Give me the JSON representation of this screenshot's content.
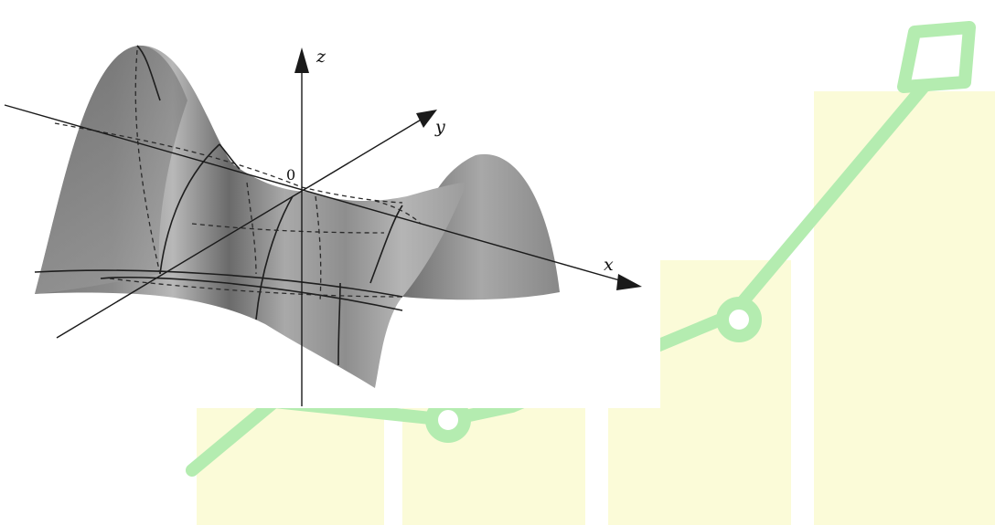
{
  "colors": {
    "watermark_bars": "#fbfbd8",
    "watermark_arrow": "#a8e6a8",
    "surface_dark": "#6f6f6f",
    "surface_light": "#b9b9b9",
    "axis": "#1a1a1a"
  },
  "figure": {
    "axes": {
      "z_label": "z",
      "y_label": "y",
      "x_label": "x",
      "origin_label": "0"
    }
  },
  "watermark": {
    "icon": "growth-chart-arrow-icon",
    "bar_levels": [
      0.22,
      0.22,
      0.5,
      0.82
    ]
  }
}
